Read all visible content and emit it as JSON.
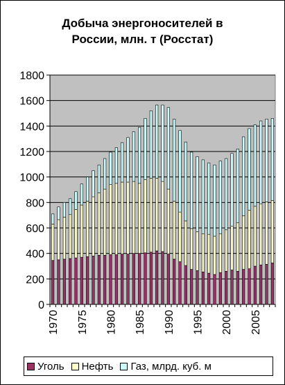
{
  "chart_data": {
    "type": "bar",
    "stacked": true,
    "title": "Добыча энергоносителей в России, млн. т (Росстат)",
    "title_line1": "Добыча энергоносителей в",
    "title_line2": "России, млн. т (Росстат)",
    "ylim": [
      0,
      1800
    ],
    "yticks": [
      "0",
      "200",
      "400",
      "600",
      "800",
      "1000",
      "1200",
      "1400",
      "1600",
      "1800"
    ],
    "xtick_labels": [
      "1970",
      "1975",
      "1980",
      "1985",
      "1990",
      "1995",
      "2000",
      "2005"
    ],
    "categories": [
      "1970",
      "1971",
      "1972",
      "1973",
      "1974",
      "1975",
      "1976",
      "1977",
      "1978",
      "1979",
      "1980",
      "1981",
      "1982",
      "1983",
      "1984",
      "1985",
      "1986",
      "1987",
      "1988",
      "1989",
      "1990",
      "1991",
      "1992",
      "1993",
      "1994",
      "1995",
      "1996",
      "1997",
      "1998",
      "1999",
      "2000",
      "2001",
      "2002",
      "2003",
      "2004",
      "2005",
      "2006",
      "2007",
      "2008"
    ],
    "series": [
      {
        "name": "Уголь",
        "color": "#993366",
        "values": [
          345,
          350,
          355,
          360,
          365,
          370,
          375,
          380,
          385,
          385,
          390,
          390,
          395,
          395,
          400,
          400,
          405,
          410,
          420,
          415,
          395,
          355,
          335,
          305,
          275,
          265,
          255,
          245,
          235,
          250,
          260,
          270,
          260,
          275,
          280,
          300,
          310,
          315,
          325
        ]
      },
      {
        "name": "Нефть",
        "color": "#FFFFCC",
        "values": [
          285,
          315,
          330,
          345,
          380,
          410,
          435,
          465,
          490,
          520,
          550,
          560,
          565,
          565,
          565,
          550,
          575,
          580,
          570,
          550,
          510,
          455,
          390,
          350,
          320,
          305,
          300,
          305,
          300,
          305,
          325,
          345,
          380,
          420,
          460,
          470,
          480,
          490,
          490
        ]
      },
      {
        "name": "Газ, млрд. куб. м",
        "color": "#CCFFFF",
        "values": [
          80,
          100,
          115,
          125,
          140,
          165,
          190,
          205,
          220,
          240,
          255,
          280,
          310,
          350,
          390,
          440,
          480,
          530,
          575,
          600,
          640,
          645,
          640,
          620,
          600,
          590,
          580,
          560,
          560,
          570,
          560,
          570,
          580,
          620,
          640,
          640,
          650,
          650,
          645
        ]
      }
    ],
    "legend_position": "bottom",
    "plot_background": "#C0C0C0",
    "grid": true
  }
}
